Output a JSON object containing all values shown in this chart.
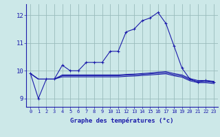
{
  "x": [
    0,
    1,
    2,
    3,
    4,
    5,
    6,
    7,
    8,
    9,
    10,
    11,
    12,
    13,
    14,
    15,
    16,
    17,
    18,
    19,
    20,
    21,
    22,
    23
  ],
  "line_main": [
    9.9,
    9.0,
    9.7,
    9.7,
    10.2,
    10.0,
    10.0,
    10.3,
    10.3,
    10.3,
    10.7,
    10.7,
    11.4,
    11.5,
    11.8,
    11.9,
    12.1,
    11.7,
    10.9,
    10.1,
    9.7,
    9.6,
    9.65,
    9.6
  ],
  "line_second": [
    null,
    null,
    null,
    null,
    10.2,
    10.0,
    null,
    10.3,
    10.3,
    10.3,
    10.7,
    10.7,
    null,
    null,
    null,
    null,
    null,
    null,
    null,
    10.1,
    null,
    null,
    null,
    null
  ],
  "flat_a": [
    9.9,
    9.7,
    9.7,
    9.7,
    9.85,
    9.85,
    9.85,
    9.85,
    9.85,
    9.85,
    9.85,
    9.85,
    9.87,
    9.88,
    9.9,
    9.92,
    9.95,
    9.97,
    9.9,
    9.85,
    9.72,
    9.65,
    9.65,
    9.62
  ],
  "flat_b": [
    9.9,
    9.7,
    9.7,
    9.7,
    9.82,
    9.82,
    9.82,
    9.82,
    9.82,
    9.82,
    9.82,
    9.82,
    9.84,
    9.85,
    9.87,
    9.89,
    9.91,
    9.93,
    9.86,
    9.81,
    9.68,
    9.61,
    9.61,
    9.58
  ],
  "flat_c": [
    9.9,
    9.7,
    9.7,
    9.7,
    9.78,
    9.78,
    9.78,
    9.78,
    9.78,
    9.78,
    9.78,
    9.78,
    9.8,
    9.81,
    9.83,
    9.85,
    9.87,
    9.89,
    9.82,
    9.77,
    9.64,
    9.57,
    9.57,
    9.54
  ],
  "background_color": "#cce8e8",
  "line_color": "#1a1aaa",
  "grid_color": "#99bbbb",
  "xlabel": "Graphe des températures (°c)",
  "ylim": [
    8.7,
    12.4
  ],
  "yticks": [
    9,
    10,
    11,
    12
  ],
  "xticks": [
    0,
    1,
    2,
    3,
    4,
    5,
    6,
    7,
    8,
    9,
    10,
    11,
    12,
    13,
    14,
    15,
    16,
    17,
    18,
    19,
    20,
    21,
    22,
    23
  ],
  "marker": "+",
  "markersize": 3,
  "linewidth": 0.8
}
